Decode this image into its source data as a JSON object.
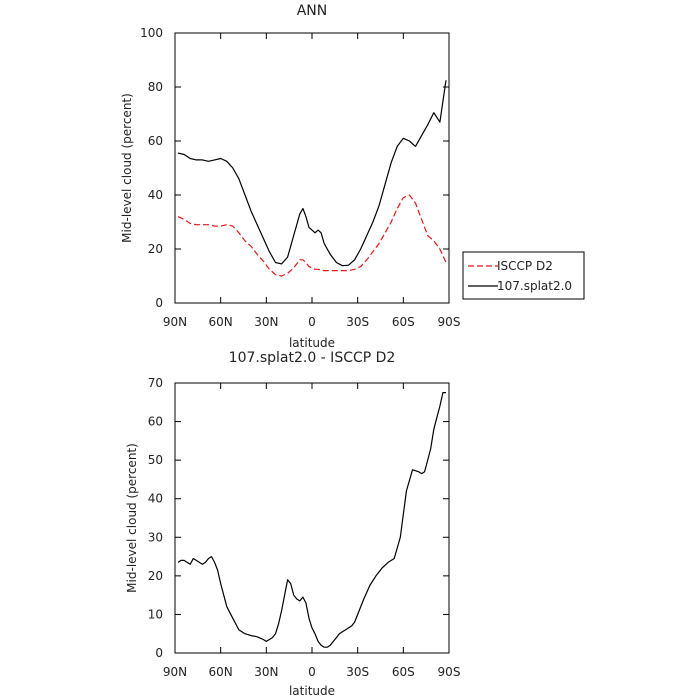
{
  "chart_data": [
    {
      "type": "line",
      "title": "ANN",
      "xlabel": "latitude",
      "ylabel": "Mid-level cloud (percent)",
      "x_ticks": [
        "90N",
        "60N",
        "30N",
        "0",
        "30S",
        "60S",
        "90S"
      ],
      "x_tick_values": [
        90,
        60,
        30,
        0,
        -30,
        -60,
        -90
      ],
      "xlim": [
        90,
        -90
      ],
      "ylim": [
        0,
        100
      ],
      "y_ticks": [
        0,
        20,
        40,
        60,
        80,
        100
      ],
      "grid": false,
      "legend_position": "right",
      "x": [
        88,
        84,
        80,
        76,
        72,
        68,
        64,
        60,
        56,
        52,
        48,
        44,
        40,
        36,
        32,
        28,
        24,
        20,
        16,
        12,
        8,
        6,
        4,
        2,
        0,
        -2,
        -4,
        -6,
        -8,
        -12,
        -16,
        -20,
        -24,
        -28,
        -32,
        -36,
        -40,
        -44,
        -48,
        -52,
        -56,
        -60,
        -64,
        -68,
        -72,
        -76,
        -80,
        -84,
        -88
      ],
      "series": [
        {
          "name": "ISCCP D2",
          "color": "#e01818",
          "style": "dashed",
          "values": [
            32,
            31,
            29.5,
            29,
            29,
            29,
            28.5,
            28.5,
            29,
            28.5,
            26,
            23,
            21,
            18,
            15.5,
            12.5,
            10.5,
            10,
            11,
            13,
            16,
            16,
            15,
            13.5,
            13,
            12.5,
            12.5,
            12.2,
            12,
            12,
            12,
            12,
            12,
            12.5,
            13.5,
            16,
            19,
            22,
            26,
            30,
            35,
            39,
            40,
            37,
            31,
            25,
            23,
            20,
            15
          ]
        },
        {
          "name": "107.splat2.0",
          "color": "#000000",
          "style": "solid",
          "values": [
            55.5,
            55,
            53.5,
            53,
            53,
            52.5,
            53,
            53.5,
            52.5,
            50,
            46,
            40,
            34,
            29,
            24,
            19,
            15,
            14.5,
            17,
            25,
            33,
            35,
            32,
            28,
            27,
            26,
            27,
            26,
            22,
            18,
            15,
            13.8,
            14,
            16,
            20,
            25,
            30,
            36,
            44,
            52,
            58,
            61,
            60,
            58,
            62,
            66,
            70.5,
            67,
            82.5
          ]
        }
      ]
    },
    {
      "type": "line",
      "title": "107.splat2.0 - ISCCP D2",
      "xlabel": "latitude",
      "ylabel": "Mid-level cloud (percent)",
      "x_ticks": [
        "90N",
        "60N",
        "30N",
        "0",
        "30S",
        "60S",
        "90S"
      ],
      "x_tick_values": [
        90,
        60,
        30,
        0,
        -30,
        -60,
        -90
      ],
      "xlim": [
        90,
        -90
      ],
      "ylim": [
        0,
        70
      ],
      "y_ticks": [
        0,
        10,
        20,
        30,
        40,
        50,
        60,
        70
      ],
      "grid": false,
      "x": [
        88,
        86,
        84,
        82,
        80,
        78,
        76,
        74,
        72,
        70,
        68,
        66,
        64,
        62,
        60,
        56,
        52,
        48,
        44,
        40,
        36,
        32,
        30,
        28,
        26,
        24,
        22,
        20,
        18,
        16,
        14,
        12,
        10,
        8,
        6,
        4,
        2,
        0,
        -2,
        -4,
        -6,
        -8,
        -10,
        -12,
        -14,
        -16,
        -18,
        -20,
        -22,
        -24,
        -26,
        -28,
        -30,
        -34,
        -38,
        -42,
        -46,
        -50,
        -54,
        -58,
        -62,
        -66,
        -70,
        -72,
        -74,
        -76,
        -78,
        -80,
        -82,
        -84,
        -86,
        -88
      ],
      "series": [
        {
          "name": "",
          "color": "#000000",
          "style": "solid",
          "values": [
            23.5,
            24,
            24,
            23.5,
            23,
            24.5,
            24,
            23.5,
            23,
            23.5,
            24.5,
            25,
            23.5,
            21.5,
            18,
            12,
            9,
            6,
            5,
            4.5,
            4.2,
            3.5,
            3,
            3.5,
            4,
            5,
            7.5,
            11,
            15,
            19,
            18,
            15,
            14,
            13.5,
            14.5,
            13,
            9,
            6.5,
            5,
            3,
            2,
            1.5,
            1.5,
            2,
            3,
            4,
            5,
            5.5,
            6,
            6.5,
            7,
            8,
            10,
            14,
            17.5,
            20,
            22,
            23.5,
            24.5,
            30,
            42,
            47.5,
            47,
            46.5,
            47,
            50,
            53,
            58,
            61,
            64,
            67.5,
            67.5
          ]
        }
      ]
    }
  ]
}
